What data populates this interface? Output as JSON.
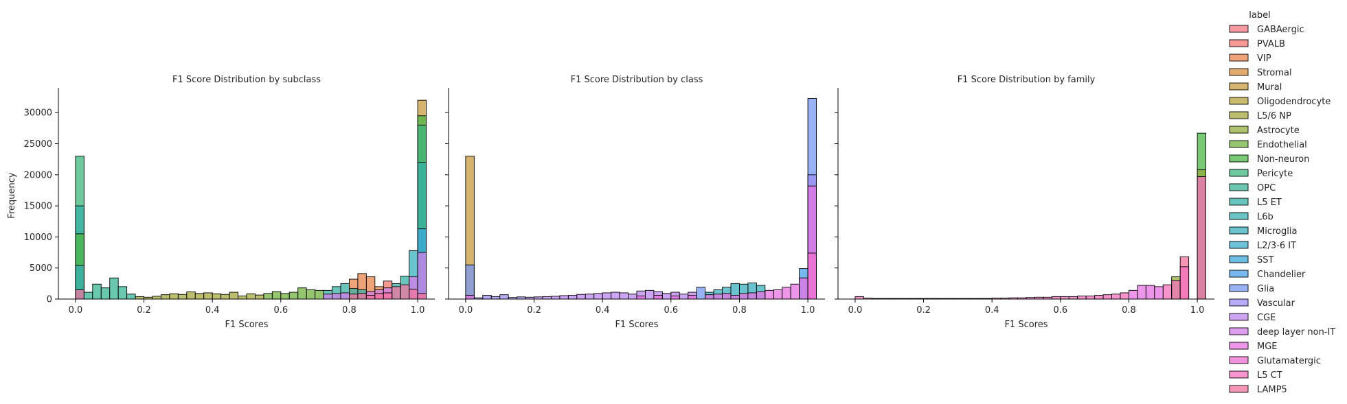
{
  "figure": {
    "ylabel": "Frequency",
    "legend_title": "label",
    "legend_placement": "right"
  },
  "legend": [
    {
      "label": "GABAergic",
      "color": "#f37783"
    },
    {
      "label": "PVALB",
      "color": "#f0786c"
    },
    {
      "label": "VIP",
      "color": "#e8844b"
    },
    {
      "label": "Stromal",
      "color": "#d8903f"
    },
    {
      "label": "Mural",
      "color": "#c59b3d"
    },
    {
      "label": "Oligodendrocyte",
      "color": "#b5a23c"
    },
    {
      "label": "L5/6 NP",
      "color": "#a5a83d"
    },
    {
      "label": "Astrocyte",
      "color": "#92ad3e"
    },
    {
      "label": "Endothelial",
      "color": "#73b23f"
    },
    {
      "label": "Non-neuron",
      "color": "#4cb647"
    },
    {
      "label": "Pericyte",
      "color": "#3cb67b"
    },
    {
      "label": "OPC",
      "color": "#38b495"
    },
    {
      "label": "L5 ET",
      "color": "#37b2a5"
    },
    {
      "label": "L6b",
      "color": "#38b0b2"
    },
    {
      "label": "Microglia",
      "color": "#3aafbd"
    },
    {
      "label": "L2/3-6 IT",
      "color": "#3badcb"
    },
    {
      "label": "SST",
      "color": "#3ea8db"
    },
    {
      "label": "Chandelier",
      "color": "#4aa0e8"
    },
    {
      "label": "Glia",
      "color": "#7797f1"
    },
    {
      "label": "Vascular",
      "color": "#9d8ff2"
    },
    {
      "label": "CGE",
      "color": "#bc87ef"
    },
    {
      "label": "deep layer non-IT",
      "color": "#d47eea"
    },
    {
      "label": "MGE",
      "color": "#e773e2"
    },
    {
      "label": "Glutamatergic",
      "color": "#f06fd2"
    },
    {
      "label": "L5 CT",
      "color": "#f170bc"
    },
    {
      "label": "LAMP5",
      "color": "#f2739f"
    }
  ],
  "chart_data": [
    {
      "type": "bar",
      "title": "F1 Score Distribution by subclass",
      "xlabel": "F1 Scores",
      "ylabel": "Frequency",
      "xlim": [
        -0.05,
        1.05
      ],
      "ylim": [
        0,
        34000
      ],
      "x_ticks": [
        "0.0",
        "0.2",
        "0.4",
        "0.6",
        "0.8",
        "1.0"
      ],
      "y_ticks": [
        "0",
        "5000",
        "10000",
        "15000",
        "20000",
        "25000",
        "30000"
      ],
      "bin_width": 0.025,
      "grid": false,
      "bars": [
        {
          "x": 0.0,
          "value": 23000,
          "color": "#3cb67b"
        },
        {
          "x": 0.0,
          "value": 15000,
          "color": "#37b2a5"
        },
        {
          "x": 0.0,
          "value": 10500,
          "color": "#4cb647"
        },
        {
          "x": 0.0,
          "value": 5400,
          "color": "#38b0b2"
        },
        {
          "x": 0.0,
          "value": 1500,
          "color": "#f2739f"
        },
        {
          "x": 0.025,
          "value": 1100,
          "color": "#38b495"
        },
        {
          "x": 0.05,
          "value": 2400,
          "color": "#38b495"
        },
        {
          "x": 0.075,
          "value": 1800,
          "color": "#38b495"
        },
        {
          "x": 0.1,
          "value": 3400,
          "color": "#38b495"
        },
        {
          "x": 0.125,
          "value": 2000,
          "color": "#38b495"
        },
        {
          "x": 0.15,
          "value": 800,
          "color": "#38b495"
        },
        {
          "x": 0.175,
          "value": 400,
          "color": "#a5a83d"
        },
        {
          "x": 0.2,
          "value": 300,
          "color": "#a5a83d"
        },
        {
          "x": 0.225,
          "value": 450,
          "color": "#a5a83d"
        },
        {
          "x": 0.25,
          "value": 700,
          "color": "#a5a83d"
        },
        {
          "x": 0.275,
          "value": 850,
          "color": "#a5a83d"
        },
        {
          "x": 0.3,
          "value": 750,
          "color": "#a5a83d"
        },
        {
          "x": 0.325,
          "value": 1150,
          "color": "#a5a83d"
        },
        {
          "x": 0.35,
          "value": 900,
          "color": "#a5a83d"
        },
        {
          "x": 0.375,
          "value": 1000,
          "color": "#a5a83d"
        },
        {
          "x": 0.4,
          "value": 850,
          "color": "#a5a83d"
        },
        {
          "x": 0.425,
          "value": 750,
          "color": "#a5a83d"
        },
        {
          "x": 0.45,
          "value": 1100,
          "color": "#a5a83d"
        },
        {
          "x": 0.475,
          "value": 500,
          "color": "#a5a83d"
        },
        {
          "x": 0.5,
          "value": 850,
          "color": "#a5a83d"
        },
        {
          "x": 0.525,
          "value": 650,
          "color": "#a5a83d"
        },
        {
          "x": 0.55,
          "value": 900,
          "color": "#73b23f"
        },
        {
          "x": 0.575,
          "value": 1200,
          "color": "#73b23f"
        },
        {
          "x": 0.6,
          "value": 900,
          "color": "#73b23f"
        },
        {
          "x": 0.625,
          "value": 1100,
          "color": "#73b23f"
        },
        {
          "x": 0.65,
          "value": 1800,
          "color": "#73b23f"
        },
        {
          "x": 0.675,
          "value": 1500,
          "color": "#73b23f"
        },
        {
          "x": 0.7,
          "value": 1400,
          "color": "#73b23f"
        },
        {
          "x": 0.725,
          "value": 1400,
          "color": "#37b2a5"
        },
        {
          "x": 0.75,
          "value": 2000,
          "color": "#37b2a5"
        },
        {
          "x": 0.775,
          "value": 2500,
          "color": "#37b2a5"
        },
        {
          "x": 0.8,
          "value": 3200,
          "color": "#e8844b"
        },
        {
          "x": 0.825,
          "value": 4100,
          "color": "#e8844b"
        },
        {
          "x": 0.85,
          "value": 3600,
          "color": "#e8844b"
        },
        {
          "x": 0.875,
          "value": 2000,
          "color": "#e8844b"
        },
        {
          "x": 0.9,
          "value": 2900,
          "color": "#f0786c"
        },
        {
          "x": 0.925,
          "value": 2500,
          "color": "#37b2a5"
        },
        {
          "x": 0.95,
          "value": 3700,
          "color": "#37b2a5"
        },
        {
          "x": 0.975,
          "value": 7800,
          "color": "#3aafbd"
        },
        {
          "x": 0.975,
          "value": 3600,
          "color": "#d47eea"
        },
        {
          "x": 0.975,
          "value": 1600,
          "color": "#f2739f"
        },
        {
          "x": 0.8,
          "value": 1700,
          "color": "#37b2a5"
        },
        {
          "x": 0.825,
          "value": 1500,
          "color": "#37b2a5"
        },
        {
          "x": 0.85,
          "value": 1200,
          "color": "#d47eea"
        },
        {
          "x": 0.875,
          "value": 1500,
          "color": "#d47eea"
        },
        {
          "x": 0.9,
          "value": 1800,
          "color": "#d47eea"
        },
        {
          "x": 0.925,
          "value": 2000,
          "color": "#f2739f"
        },
        {
          "x": 0.95,
          "value": 2300,
          "color": "#f2739f"
        },
        {
          "x": 0.725,
          "value": 800,
          "color": "#d47eea"
        },
        {
          "x": 0.75,
          "value": 900,
          "color": "#d47eea"
        },
        {
          "x": 0.775,
          "value": 1000,
          "color": "#d47eea"
        },
        {
          "x": 0.8,
          "value": 800,
          "color": "#f2739f"
        },
        {
          "x": 0.825,
          "value": 900,
          "color": "#f2739f"
        },
        {
          "x": 0.85,
          "value": 600,
          "color": "#f2739f"
        },
        {
          "x": 0.875,
          "value": 900,
          "color": "#f2739f"
        },
        {
          "x": 0.9,
          "value": 1000,
          "color": "#f2739f"
        },
        {
          "x": 1.0,
          "value": 32000,
          "color": "#c59b3d"
        },
        {
          "x": 1.0,
          "value": 29500,
          "color": "#4cb647"
        },
        {
          "x": 1.0,
          "value": 28000,
          "color": "#3cb67b"
        },
        {
          "x": 1.0,
          "value": 22000,
          "color": "#37b2a5"
        },
        {
          "x": 1.0,
          "value": 11300,
          "color": "#3ea8db"
        },
        {
          "x": 1.0,
          "value": 7500,
          "color": "#d47eea"
        },
        {
          "x": 1.0,
          "value": 900,
          "color": "#f2739f"
        }
      ]
    },
    {
      "type": "bar",
      "title": "F1 Score Distribution by class",
      "xlabel": "F1 Scores",
      "ylabel": "",
      "xlim": [
        -0.05,
        1.05
      ],
      "ylim": [
        0,
        34000
      ],
      "x_ticks": [
        "0.0",
        "0.2",
        "0.4",
        "0.6",
        "0.8",
        "1.0"
      ],
      "y_ticks": [],
      "bin_width": 0.025,
      "grid": false,
      "bars": [
        {
          "x": 0.0,
          "value": 23000,
          "color": "#c59b3d"
        },
        {
          "x": 0.0,
          "value": 5500,
          "color": "#7797f1"
        },
        {
          "x": 0.0,
          "value": 600,
          "color": "#e773e2"
        },
        {
          "x": 0.025,
          "value": 200,
          "color": "#9d8ff2"
        },
        {
          "x": 0.05,
          "value": 600,
          "color": "#9d8ff2"
        },
        {
          "x": 0.075,
          "value": 400,
          "color": "#9d8ff2"
        },
        {
          "x": 0.1,
          "value": 700,
          "color": "#9d8ff2"
        },
        {
          "x": 0.125,
          "value": 250,
          "color": "#9d8ff2"
        },
        {
          "x": 0.15,
          "value": 350,
          "color": "#9d8ff2"
        },
        {
          "x": 0.175,
          "value": 300,
          "color": "#bc87ef"
        },
        {
          "x": 0.2,
          "value": 350,
          "color": "#bc87ef"
        },
        {
          "x": 0.225,
          "value": 400,
          "color": "#bc87ef"
        },
        {
          "x": 0.25,
          "value": 450,
          "color": "#bc87ef"
        },
        {
          "x": 0.275,
          "value": 550,
          "color": "#bc87ef"
        },
        {
          "x": 0.3,
          "value": 600,
          "color": "#bc87ef"
        },
        {
          "x": 0.325,
          "value": 750,
          "color": "#bc87ef"
        },
        {
          "x": 0.35,
          "value": 800,
          "color": "#bc87ef"
        },
        {
          "x": 0.375,
          "value": 900,
          "color": "#bc87ef"
        },
        {
          "x": 0.4,
          "value": 1000,
          "color": "#bc87ef"
        },
        {
          "x": 0.425,
          "value": 1100,
          "color": "#bc87ef"
        },
        {
          "x": 0.45,
          "value": 1000,
          "color": "#bc87ef"
        },
        {
          "x": 0.475,
          "value": 800,
          "color": "#bc87ef"
        },
        {
          "x": 0.5,
          "value": 1300,
          "color": "#bc87ef"
        },
        {
          "x": 0.525,
          "value": 1400,
          "color": "#bc87ef"
        },
        {
          "x": 0.55,
          "value": 1200,
          "color": "#bc87ef"
        },
        {
          "x": 0.575,
          "value": 900,
          "color": "#bc87ef"
        },
        {
          "x": 0.6,
          "value": 1100,
          "color": "#bc87ef"
        },
        {
          "x": 0.625,
          "value": 800,
          "color": "#bc87ef"
        },
        {
          "x": 0.65,
          "value": 1100,
          "color": "#bc87ef"
        },
        {
          "x": 0.675,
          "value": 1900,
          "color": "#7797f1"
        },
        {
          "x": 0.7,
          "value": 1100,
          "color": "#3aafbd"
        },
        {
          "x": 0.725,
          "value": 1500,
          "color": "#3aafbd"
        },
        {
          "x": 0.75,
          "value": 1900,
          "color": "#3aafbd"
        },
        {
          "x": 0.775,
          "value": 2500,
          "color": "#3aafbd"
        },
        {
          "x": 0.8,
          "value": 2400,
          "color": "#3aafbd"
        },
        {
          "x": 0.825,
          "value": 2600,
          "color": "#3aafbd"
        },
        {
          "x": 0.85,
          "value": 2200,
          "color": "#3aafbd"
        },
        {
          "x": 0.875,
          "value": 1400,
          "color": "#e773e2"
        },
        {
          "x": 0.9,
          "value": 1500,
          "color": "#e773e2"
        },
        {
          "x": 0.925,
          "value": 1900,
          "color": "#e773e2"
        },
        {
          "x": 0.95,
          "value": 2400,
          "color": "#e773e2"
        },
        {
          "x": 0.975,
          "value": 4900,
          "color": "#4aa0e8"
        },
        {
          "x": 0.975,
          "value": 3400,
          "color": "#e773e2"
        },
        {
          "x": 0.7,
          "value": 700,
          "color": "#e773e2"
        },
        {
          "x": 0.725,
          "value": 800,
          "color": "#e773e2"
        },
        {
          "x": 0.75,
          "value": 900,
          "color": "#e773e2"
        },
        {
          "x": 0.775,
          "value": 600,
          "color": "#e773e2"
        },
        {
          "x": 0.8,
          "value": 900,
          "color": "#e773e2"
        },
        {
          "x": 0.825,
          "value": 1000,
          "color": "#e773e2"
        },
        {
          "x": 0.85,
          "value": 1200,
          "color": "#e773e2"
        },
        {
          "x": 0.5,
          "value": 500,
          "color": "#e773e2"
        },
        {
          "x": 0.55,
          "value": 600,
          "color": "#e773e2"
        },
        {
          "x": 0.6,
          "value": 500,
          "color": "#e773e2"
        },
        {
          "x": 0.65,
          "value": 600,
          "color": "#e773e2"
        },
        {
          "x": 1.0,
          "value": 32300,
          "color": "#7797f1"
        },
        {
          "x": 1.0,
          "value": 20000,
          "color": "#9d8ff2"
        },
        {
          "x": 1.0,
          "value": 18200,
          "color": "#e773e2"
        },
        {
          "x": 1.0,
          "value": 7400,
          "color": "#f06fd2"
        }
      ]
    },
    {
      "type": "bar",
      "title": "F1 Score Distribution by family",
      "xlabel": "F1 Scores",
      "ylabel": "",
      "xlim": [
        -0.05,
        1.05
      ],
      "ylim": [
        0,
        34000
      ],
      "x_ticks": [
        "0.0",
        "0.2",
        "0.4",
        "0.6",
        "0.8",
        "1.0"
      ],
      "y_ticks": [],
      "bin_width": 0.025,
      "grid": false,
      "bars": [
        {
          "x": 0.0,
          "value": 400,
          "color": "#f170bc"
        },
        {
          "x": 0.025,
          "value": 150,
          "color": "#f170bc"
        },
        {
          "x": 0.05,
          "value": 100,
          "color": "#f170bc"
        },
        {
          "x": 0.075,
          "value": 100,
          "color": "#f170bc"
        },
        {
          "x": 0.1,
          "value": 100,
          "color": "#f170bc"
        },
        {
          "x": 0.125,
          "value": 100,
          "color": "#f170bc"
        },
        {
          "x": 0.15,
          "value": 100,
          "color": "#f170bc"
        },
        {
          "x": 0.175,
          "value": 100,
          "color": "#f170bc"
        },
        {
          "x": 0.2,
          "value": 100,
          "color": "#f170bc"
        },
        {
          "x": 0.225,
          "value": 100,
          "color": "#f170bc"
        },
        {
          "x": 0.25,
          "value": 100,
          "color": "#f170bc"
        },
        {
          "x": 0.275,
          "value": 100,
          "color": "#f170bc"
        },
        {
          "x": 0.3,
          "value": 100,
          "color": "#f170bc"
        },
        {
          "x": 0.325,
          "value": 100,
          "color": "#f170bc"
        },
        {
          "x": 0.35,
          "value": 100,
          "color": "#f170bc"
        },
        {
          "x": 0.375,
          "value": 100,
          "color": "#f170bc"
        },
        {
          "x": 0.4,
          "value": 150,
          "color": "#f170bc"
        },
        {
          "x": 0.425,
          "value": 150,
          "color": "#f170bc"
        },
        {
          "x": 0.45,
          "value": 200,
          "color": "#f170bc"
        },
        {
          "x": 0.475,
          "value": 200,
          "color": "#f170bc"
        },
        {
          "x": 0.5,
          "value": 250,
          "color": "#f170bc"
        },
        {
          "x": 0.525,
          "value": 300,
          "color": "#f170bc"
        },
        {
          "x": 0.55,
          "value": 300,
          "color": "#f170bc"
        },
        {
          "x": 0.575,
          "value": 400,
          "color": "#f170bc"
        },
        {
          "x": 0.6,
          "value": 400,
          "color": "#f170bc"
        },
        {
          "x": 0.625,
          "value": 400,
          "color": "#f170bc"
        },
        {
          "x": 0.65,
          "value": 500,
          "color": "#f170bc"
        },
        {
          "x": 0.675,
          "value": 500,
          "color": "#f170bc"
        },
        {
          "x": 0.7,
          "value": 600,
          "color": "#f170bc"
        },
        {
          "x": 0.725,
          "value": 700,
          "color": "#f170bc"
        },
        {
          "x": 0.75,
          "value": 800,
          "color": "#f170bc"
        },
        {
          "x": 0.775,
          "value": 1000,
          "color": "#f170bc"
        },
        {
          "x": 0.8,
          "value": 1400,
          "color": "#e773e2"
        },
        {
          "x": 0.825,
          "value": 2200,
          "color": "#e773e2"
        },
        {
          "x": 0.85,
          "value": 2200,
          "color": "#e773e2"
        },
        {
          "x": 0.875,
          "value": 2000,
          "color": "#e773e2"
        },
        {
          "x": 0.9,
          "value": 2300,
          "color": "#f170bc"
        },
        {
          "x": 0.925,
          "value": 3600,
          "color": "#92ad3e"
        },
        {
          "x": 0.925,
          "value": 3000,
          "color": "#f170bc"
        },
        {
          "x": 0.95,
          "value": 6800,
          "color": "#f2739f"
        },
        {
          "x": 0.95,
          "value": 5200,
          "color": "#f170bc"
        },
        {
          "x": 1.0,
          "value": 26700,
          "color": "#4cb647"
        },
        {
          "x": 1.0,
          "value": 20800,
          "color": "#92ad3e"
        },
        {
          "x": 1.0,
          "value": 19700,
          "color": "#f170bc"
        }
      ]
    }
  ]
}
